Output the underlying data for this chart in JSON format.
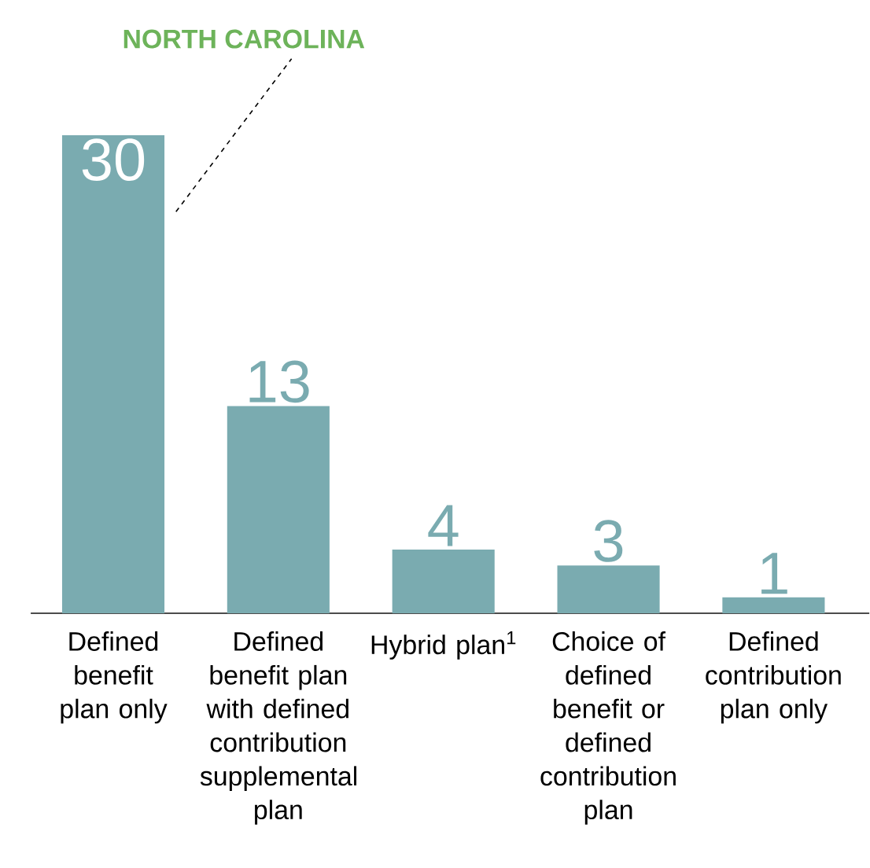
{
  "chart_data": {
    "type": "bar",
    "categories": [
      "Defined benefit plan only",
      "Defined benefit plan with defined contribution supplemental plan",
      "Hybrid plan$^{1}$",
      "Choice of defined benefit or defined contribution plan",
      "Defined contribution plan only"
    ],
    "values": [
      30,
      13,
      4,
      3,
      1
    ],
    "color": "#7aabb0",
    "data_labels": true,
    "tick_labels": "x",
    "grid": false,
    "annotations": [
      "NORTH CAROLINA"
    ]
  }
}
